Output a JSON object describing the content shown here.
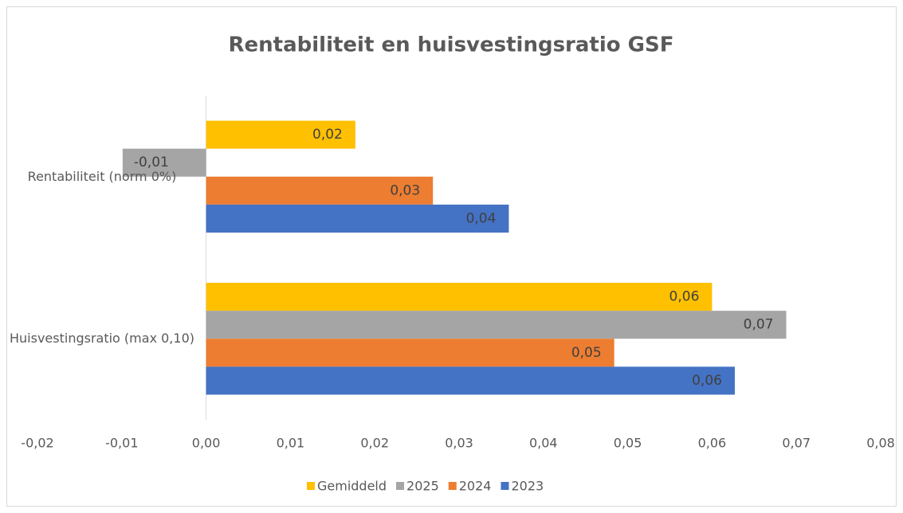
{
  "chart_data": {
    "type": "hbar",
    "title": "Rentabiliteit en huisvestingsratio GSF",
    "categories": [
      "Rentabiliteit (norm 0%)",
      "Huisvestingsratio (max 0,10)"
    ],
    "series": [
      {
        "name": "Gemiddeld",
        "color": "#ffc000",
        "values": [
          0.0177,
          0.06
        ],
        "value_labels": [
          "0,02",
          "0,06"
        ]
      },
      {
        "name": "2025",
        "color": "#a5a5a5",
        "values": [
          -0.0099,
          0.0688
        ],
        "value_labels": [
          "-0,01",
          "0,07"
        ]
      },
      {
        "name": "2024",
        "color": "#ed7d31",
        "values": [
          0.0269,
          0.0484
        ],
        "value_labels": [
          "0,03",
          "0,05"
        ]
      },
      {
        "name": "2023",
        "color": "#4472c4",
        "values": [
          0.0359,
          0.0627
        ],
        "value_labels": [
          "0,04",
          "0,06"
        ]
      }
    ],
    "xlim": [
      -0.02,
      0.08
    ],
    "xticks": [
      {
        "value": -0.02,
        "label": "-0,02"
      },
      {
        "value": -0.01,
        "label": "-0,01"
      },
      {
        "value": 0,
        "label": "0,00"
      },
      {
        "value": 0.01,
        "label": "0,01"
      },
      {
        "value": 0.02,
        "label": "0,02"
      },
      {
        "value": 0.03,
        "label": "0,03"
      },
      {
        "value": 0.04,
        "label": "0,04"
      },
      {
        "value": 0.05,
        "label": "0,05"
      },
      {
        "value": 0.06,
        "label": "0,06"
      },
      {
        "value": 0.07,
        "label": "0,07"
      },
      {
        "value": 0.08,
        "label": "0,08"
      }
    ],
    "grid": false,
    "legend": "bottom"
  }
}
